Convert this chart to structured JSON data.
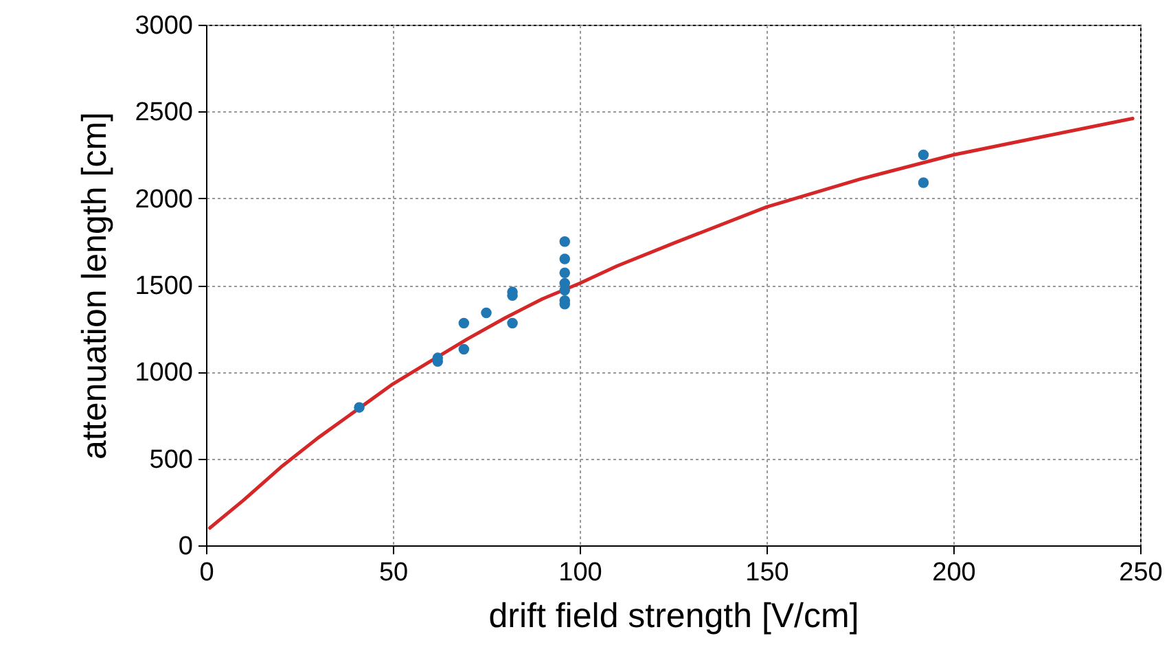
{
  "chart_data": {
    "type": "scatter",
    "xlabel": "drift field strength [V/cm]",
    "ylabel": "attenuation length [cm]",
    "xlim": [
      0,
      250
    ],
    "ylim": [
      0,
      3000
    ],
    "xticks": [
      0,
      50,
      100,
      150,
      200,
      250
    ],
    "yticks": [
      0,
      500,
      1000,
      1500,
      2000,
      2500,
      3000
    ],
    "grid": true,
    "series": [
      {
        "color": "#1f77b4",
        "marker": "circle",
        "x": [
          41,
          62,
          62,
          69,
          69,
          75,
          82,
          82,
          82,
          96,
          96,
          96,
          96,
          96,
          96,
          96,
          192,
          192
        ],
        "values": [
          795,
          1060,
          1080,
          1280,
          1130,
          1340,
          1460,
          1440,
          1280,
          1750,
          1650,
          1570,
          1510,
          1470,
          1410,
          1390,
          2250,
          2090
        ]
      },
      {
        "type": "line",
        "color": "#d62728",
        "line_style": "solid",
        "x": [
          1,
          10,
          20,
          30,
          41,
          50,
          60,
          70,
          80,
          90,
          100,
          110,
          125,
          150,
          175,
          200,
          225,
          248
        ],
        "values": [
          100,
          260,
          450,
          620,
          790,
          930,
          1060,
          1190,
          1310,
          1420,
          1510,
          1610,
          1740,
          1950,
          2110,
          2250,
          2360,
          2460
        ]
      }
    ]
  }
}
